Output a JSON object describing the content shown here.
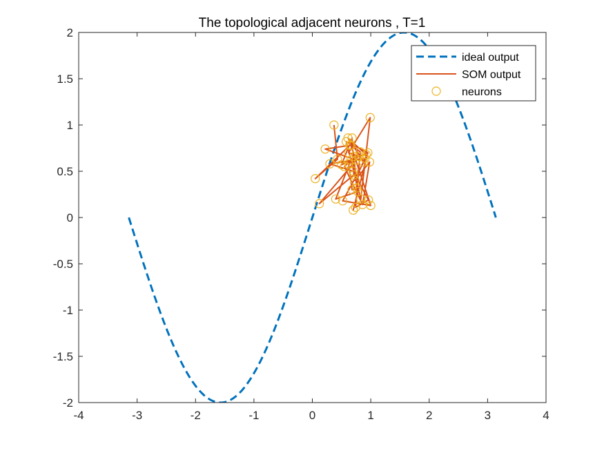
{
  "chart_data": {
    "type": "line",
    "title": "The topological adjacent neurons , T=1",
    "xlabel": "",
    "ylabel": "",
    "xlim": [
      -4,
      4
    ],
    "ylim": [
      -2,
      2
    ],
    "xticks": [
      -4,
      -3,
      -2,
      -1,
      0,
      1,
      2,
      3,
      4
    ],
    "yticks": [
      -2,
      -1.5,
      -1,
      -0.5,
      0,
      0.5,
      1,
      1.5,
      2
    ],
    "xtick_labels": [
      "-4",
      "-3",
      "-2",
      "-1",
      "0",
      "1",
      "2",
      "3",
      "4"
    ],
    "ytick_labels": [
      "-2",
      "-1.5",
      "-1",
      "-0.5",
      "0",
      "0.5",
      "1",
      "1.5",
      "2"
    ],
    "grid": false,
    "legend_position": "top-right",
    "series": [
      {
        "name": "ideal output",
        "kind": "dashed-line",
        "color": "#0072BD",
        "function": "2*sin(x)",
        "x_range": [
          -3.1416,
          3.1416
        ]
      },
      {
        "name": "SOM output",
        "kind": "line",
        "color": "#D95319",
        "points": [
          [
            0.37,
            1.0
          ],
          [
            0.43,
            0.63
          ],
          [
            0.05,
            0.42
          ],
          [
            0.64,
            0.78
          ],
          [
            0.22,
            0.74
          ],
          [
            0.75,
            0.62
          ],
          [
            0.12,
            0.15
          ],
          [
            0.71,
            0.46
          ],
          [
            0.68,
            0.86
          ],
          [
            0.5,
            0.57
          ],
          [
            0.8,
            0.66
          ],
          [
            0.62,
            0.7
          ],
          [
            0.99,
            1.08
          ],
          [
            0.83,
            0.2
          ],
          [
            0.58,
            0.82
          ],
          [
            0.95,
            0.7
          ],
          [
            0.7,
            0.08
          ],
          [
            0.78,
            0.28
          ],
          [
            0.4,
            0.2
          ],
          [
            0.66,
            0.62
          ],
          [
            0.55,
            0.55
          ],
          [
            0.86,
            0.14
          ],
          [
            0.98,
            0.6
          ],
          [
            0.73,
            0.4
          ],
          [
            0.9,
            0.64
          ],
          [
            0.3,
            0.58
          ],
          [
            0.7,
            0.5
          ],
          [
            0.96,
            0.19
          ],
          [
            0.74,
            0.11
          ],
          [
            0.82,
            0.71
          ],
          [
            0.66,
            0.78
          ],
          [
            1.0,
            0.13
          ],
          [
            0.52,
            0.18
          ],
          [
            0.88,
            0.6
          ],
          [
            0.61,
            0.86
          ],
          [
            0.92,
            0.68
          ],
          [
            0.71,
            0.66
          ],
          [
            0.76,
            0.32
          ],
          [
            0.68,
            0.3
          ],
          [
            0.62,
            0.58
          ]
        ]
      },
      {
        "name": "neurons",
        "kind": "markers",
        "marker": "circle",
        "color": "#EDB120",
        "points": "same as SOM output"
      }
    ]
  }
}
